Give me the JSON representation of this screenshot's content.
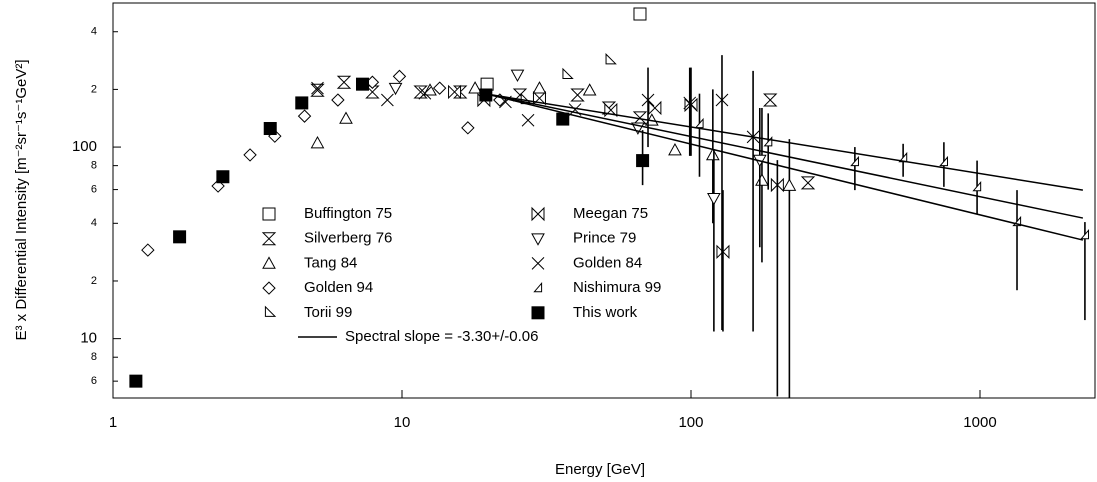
{
  "chart_data": {
    "type": "scatter",
    "x_label": "Energy [GeV]",
    "y_label": "E³ x Differential Intensity [m⁻²sr⁻¹s⁻¹GeV²]",
    "xscale": "log",
    "yscale": "log",
    "xlim": [
      1,
      2500
    ],
    "ylim": [
      4.9,
      565
    ],
    "xticks": [
      1,
      10,
      100,
      1000
    ],
    "yticks": [
      {
        "value": 6,
        "label": "6"
      },
      {
        "value": 8,
        "label": "8"
      },
      10,
      {
        "value": 20,
        "label": "2"
      },
      {
        "value": 40,
        "label": "4"
      },
      {
        "value": 60,
        "label": "6"
      },
      {
        "value": 80,
        "label": "8"
      },
      100,
      {
        "value": 200,
        "label": "2"
      },
      {
        "value": 400,
        "label": "4"
      }
    ],
    "color": "#000000",
    "series": [
      {
        "name": "Buffington 75",
        "marker": "square-open",
        "x": [
          19.7,
          66.6
        ],
        "values": [
          213,
          495
        ]
      },
      {
        "name": "Silverberg 76",
        "marker": "hourglass",
        "x": [
          5.1,
          6.3,
          7.9,
          11.6,
          15.9,
          25.6,
          40.5,
          52,
          66.6,
          188,
          254
        ],
        "values": [
          198,
          218,
          194,
          194,
          194,
          187,
          187,
          160,
          142,
          176,
          65
        ]
      },
      {
        "name": "Tang 84",
        "marker": "triangle-up",
        "x": [
          5.1,
          6.4,
          12.5,
          17.9,
          29.9,
          44.6,
          73.2,
          88,
          119,
          176,
          219
        ],
        "values": [
          105,
          141,
          198,
          203,
          203,
          198,
          138,
          96.5,
          91,
          67,
          63
        ],
        "error_low": [
          null,
          null,
          null,
          null,
          null,
          null,
          null,
          null,
          40,
          25,
          4.9
        ],
        "error_high": [
          null,
          null,
          null,
          null,
          null,
          null,
          null,
          null,
          200,
          160,
          110
        ]
      },
      {
        "name": "Golden 94",
        "marker": "diamond",
        "x": [
          1.32,
          2.31,
          2.98,
          3.63,
          4.6,
          6.0,
          7.9,
          9.8,
          13.5,
          16.9,
          21.8
        ],
        "values": [
          29,
          62.6,
          91,
          114,
          145,
          176,
          218,
          234,
          203,
          126,
          176
        ]
      },
      {
        "name": "Torii 99",
        "marker": "right-triangle",
        "x": [
          26.6,
          37.1,
          52.3
        ],
        "values": [
          176,
          238,
          284
        ]
      },
      {
        "name": "Meegan 75",
        "marker": "bowtie",
        "x": [
          15.2,
          19.2,
          29.9,
          52.8,
          75,
          100,
          129,
          199
        ],
        "values": [
          194,
          176,
          180,
          156,
          160,
          166,
          28.4,
          63.4
        ],
        "error_low": [
          null,
          null,
          null,
          null,
          null,
          90,
          10.9,
          5.0
        ],
        "error_high": [
          null,
          null,
          null,
          null,
          null,
          260,
          59.6,
          85.5
        ]
      },
      {
        "name": "Prince 79",
        "marker": "triangle-down",
        "x": [
          9.5,
          25.1,
          65.5,
          120,
          173
        ],
        "values": [
          203,
          238,
          126,
          54,
          85.5
        ],
        "error_low": [
          null,
          null,
          null,
          10.9,
          30
        ],
        "error_high": [
          null,
          null,
          null,
          96.5,
          160
        ]
      },
      {
        "name": "Golden 84",
        "marker": "x-cross",
        "x": [
          5.1,
          8.9,
          12,
          22.8,
          27.3,
          39.7,
          71,
          99,
          128,
          164
        ],
        "values": [
          203,
          176,
          191,
          172,
          138,
          157,
          176,
          170,
          176,
          113
        ],
        "error_low": [
          null,
          null,
          null,
          null,
          null,
          null,
          100,
          90,
          11.1,
          10.9
        ],
        "error_high": [
          null,
          null,
          null,
          null,
          null,
          null,
          260,
          260,
          302,
          250
        ]
      },
      {
        "name": "Nishimura 99",
        "marker": "small-triangle",
        "x": [
          107,
          185,
          369,
          542,
          750,
          977,
          1343,
          2307
        ],
        "values": [
          132,
          106,
          83.5,
          87.6,
          83.5,
          61.8,
          40.6,
          34.7
        ],
        "error_low": [
          70,
          60,
          59.6,
          70,
          62,
          45,
          17.9,
          12.5
        ],
        "error_high": [
          190,
          150,
          100,
          104,
          106,
          85,
          59.6,
          40.6
        ]
      },
      {
        "name": "This work",
        "marker": "square-filled",
        "x": [
          1.2,
          1.7,
          2.4,
          3.5,
          4.5,
          7.3,
          19.5,
          36,
          68
        ],
        "values": [
          6.0,
          34,
          70,
          125,
          170,
          213,
          187,
          140,
          85
        ],
        "error_low": [
          null,
          null,
          null,
          null,
          null,
          null,
          null,
          null,
          63.3
        ],
        "error_high": [
          null,
          null,
          null,
          null,
          null,
          null,
          null,
          null,
          122.6
        ]
      }
    ],
    "fit": {
      "name": "Spectral slope = -3.30+/-0.06",
      "x": [
        19.7,
        2270
      ],
      "lines": [
        [
          189,
          59.6
        ],
        [
          189,
          42.6
        ],
        [
          189,
          32.7
        ]
      ]
    }
  }
}
